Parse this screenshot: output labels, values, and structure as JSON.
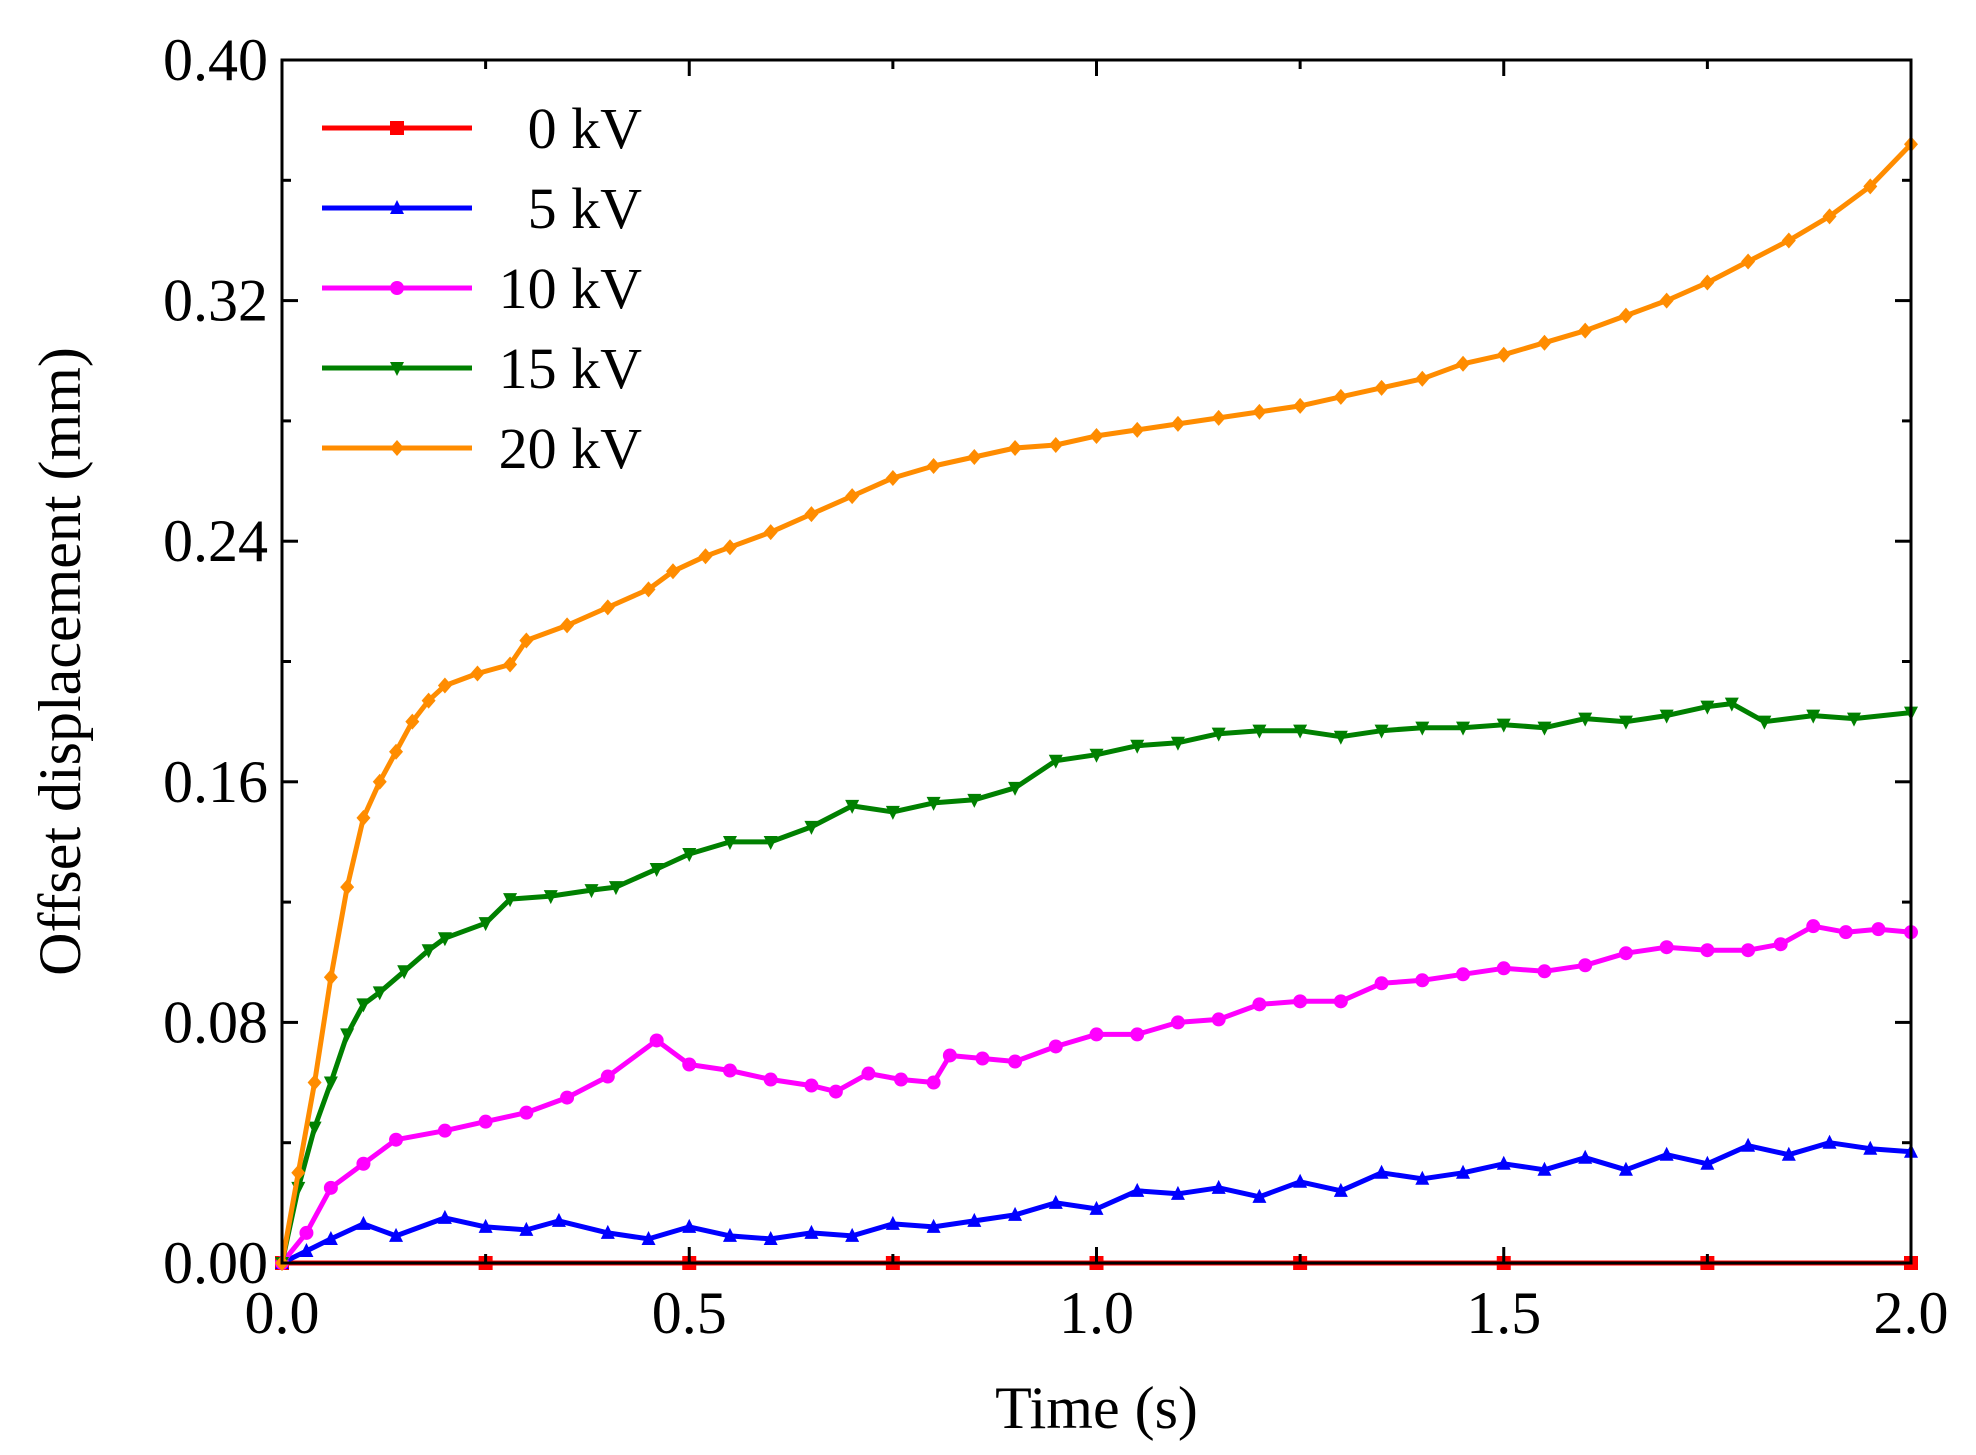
{
  "chart_data": {
    "type": "line",
    "title": "",
    "xlabel": "Time (s)",
    "ylabel": "Offset displacement (mm)",
    "xlim": [
      0.0,
      2.0
    ],
    "ylim": [
      0.0,
      0.4
    ],
    "x_ticks": [
      "0.0",
      "0.5",
      "1.0",
      "1.5",
      "2.0"
    ],
    "y_ticks": [
      "0.00",
      "0.08",
      "0.16",
      "0.24",
      "0.32",
      "0.40"
    ],
    "legend_position": "top-left",
    "series": [
      {
        "name": "0 kV",
        "color": "#ff0000",
        "marker": "square",
        "x": [
          0.0,
          0.25,
          0.5,
          0.75,
          1.0,
          1.25,
          1.5,
          1.75,
          2.0
        ],
        "y": [
          0.0,
          0.0,
          0.0,
          0.0,
          0.0,
          0.0,
          0.0,
          0.0,
          0.0
        ]
      },
      {
        "name": "5 kV",
        "color": "#0000ff",
        "marker": "triangle-up",
        "x": [
          0.0,
          0.03,
          0.06,
          0.1,
          0.14,
          0.2,
          0.25,
          0.3,
          0.34,
          0.4,
          0.45,
          0.5,
          0.55,
          0.6,
          0.65,
          0.7,
          0.75,
          0.8,
          0.85,
          0.9,
          0.95,
          1.0,
          1.05,
          1.1,
          1.15,
          1.2,
          1.25,
          1.3,
          1.35,
          1.4,
          1.45,
          1.5,
          1.55,
          1.6,
          1.65,
          1.7,
          1.75,
          1.8,
          1.85,
          1.9,
          1.95,
          2.0
        ],
        "y": [
          0.0,
          0.004,
          0.008,
          0.013,
          0.009,
          0.015,
          0.012,
          0.011,
          0.014,
          0.01,
          0.008,
          0.012,
          0.009,
          0.008,
          0.01,
          0.009,
          0.013,
          0.012,
          0.014,
          0.016,
          0.02,
          0.018,
          0.024,
          0.023,
          0.025,
          0.022,
          0.027,
          0.024,
          0.03,
          0.028,
          0.03,
          0.033,
          0.031,
          0.035,
          0.031,
          0.036,
          0.033,
          0.039,
          0.036,
          0.04,
          0.038,
          0.037
        ]
      },
      {
        "name": "10 kV",
        "color": "#ff00ff",
        "marker": "circle",
        "x": [
          0.0,
          0.03,
          0.06,
          0.1,
          0.14,
          0.2,
          0.25,
          0.3,
          0.35,
          0.4,
          0.46,
          0.5,
          0.55,
          0.6,
          0.65,
          0.68,
          0.72,
          0.76,
          0.8,
          0.82,
          0.86,
          0.9,
          0.95,
          1.0,
          1.05,
          1.1,
          1.15,
          1.2,
          1.25,
          1.3,
          1.35,
          1.4,
          1.45,
          1.5,
          1.55,
          1.6,
          1.65,
          1.7,
          1.75,
          1.8,
          1.84,
          1.88,
          1.92,
          1.96,
          2.0
        ],
        "y": [
          0.0,
          0.01,
          0.025,
          0.033,
          0.041,
          0.044,
          0.047,
          0.05,
          0.055,
          0.062,
          0.074,
          0.066,
          0.064,
          0.061,
          0.059,
          0.057,
          0.063,
          0.061,
          0.06,
          0.069,
          0.068,
          0.067,
          0.072,
          0.076,
          0.076,
          0.08,
          0.081,
          0.086,
          0.087,
          0.087,
          0.093,
          0.094,
          0.096,
          0.098,
          0.097,
          0.099,
          0.103,
          0.105,
          0.104,
          0.104,
          0.106,
          0.112,
          0.11,
          0.111,
          0.11
        ]
      },
      {
        "name": "15 kV",
        "color": "#008000",
        "marker": "triangle-down",
        "x": [
          0.0,
          0.02,
          0.04,
          0.06,
          0.08,
          0.1,
          0.12,
          0.15,
          0.18,
          0.2,
          0.25,
          0.28,
          0.33,
          0.38,
          0.41,
          0.46,
          0.5,
          0.55,
          0.6,
          0.65,
          0.7,
          0.75,
          0.8,
          0.85,
          0.9,
          0.95,
          1.0,
          1.05,
          1.1,
          1.15,
          1.2,
          1.25,
          1.3,
          1.35,
          1.4,
          1.45,
          1.5,
          1.55,
          1.6,
          1.65,
          1.7,
          1.75,
          1.78,
          1.82,
          1.88,
          1.93,
          2.0
        ],
        "y": [
          0.0,
          0.025,
          0.045,
          0.06,
          0.076,
          0.086,
          0.09,
          0.097,
          0.104,
          0.108,
          0.113,
          0.121,
          0.122,
          0.124,
          0.125,
          0.131,
          0.136,
          0.14,
          0.14,
          0.145,
          0.152,
          0.15,
          0.153,
          0.154,
          0.158,
          0.167,
          0.169,
          0.172,
          0.173,
          0.176,
          0.177,
          0.177,
          0.175,
          0.177,
          0.178,
          0.178,
          0.179,
          0.178,
          0.181,
          0.18,
          0.182,
          0.185,
          0.186,
          0.18,
          0.182,
          0.181,
          0.183
        ]
      },
      {
        "name": "20 kV",
        "color": "#ff8c00",
        "marker": "diamond",
        "x": [
          0.0,
          0.02,
          0.04,
          0.06,
          0.08,
          0.1,
          0.12,
          0.14,
          0.16,
          0.18,
          0.2,
          0.24,
          0.28,
          0.3,
          0.35,
          0.4,
          0.45,
          0.48,
          0.52,
          0.55,
          0.6,
          0.65,
          0.7,
          0.75,
          0.8,
          0.85,
          0.9,
          0.95,
          1.0,
          1.05,
          1.1,
          1.15,
          1.2,
          1.25,
          1.3,
          1.35,
          1.4,
          1.45,
          1.5,
          1.55,
          1.6,
          1.65,
          1.7,
          1.75,
          1.8,
          1.85,
          1.9,
          1.95,
          2.0
        ],
        "y": [
          0.0,
          0.03,
          0.06,
          0.095,
          0.125,
          0.148,
          0.16,
          0.17,
          0.18,
          0.187,
          0.192,
          0.196,
          0.199,
          0.207,
          0.212,
          0.218,
          0.224,
          0.23,
          0.235,
          0.238,
          0.243,
          0.249,
          0.255,
          0.261,
          0.265,
          0.268,
          0.271,
          0.272,
          0.275,
          0.277,
          0.279,
          0.281,
          0.283,
          0.285,
          0.288,
          0.291,
          0.294,
          0.299,
          0.302,
          0.306,
          0.31,
          0.315,
          0.32,
          0.326,
          0.333,
          0.34,
          0.348,
          0.358,
          0.372
        ]
      }
    ]
  }
}
